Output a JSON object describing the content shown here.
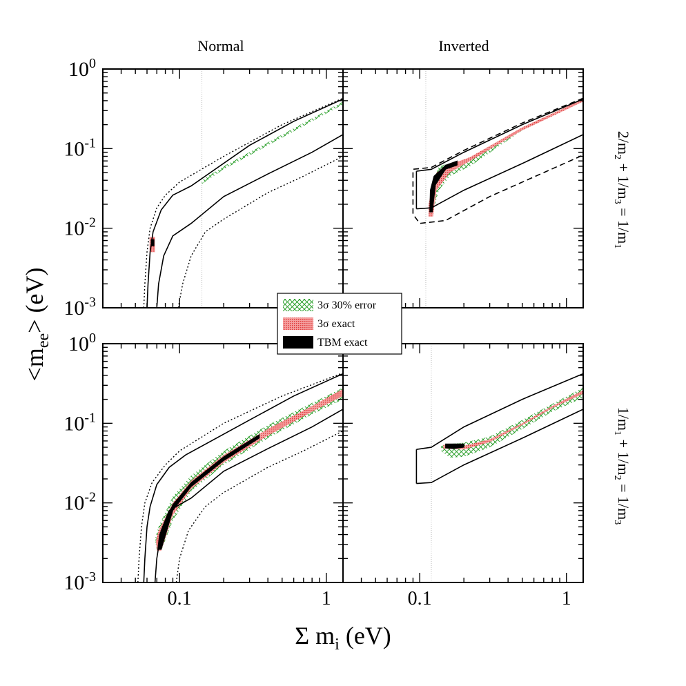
{
  "chart_data": {
    "type": "line",
    "figure": {
      "ylabel_main": "<m",
      "ylabel_sub": "ee",
      "ylabel_tail": "> (eV)",
      "xlabel_main": "Σ m",
      "xlabel_sub": "i",
      "xlabel_tail": " (eV)",
      "col_titles": [
        "Normal",
        "Inverted"
      ],
      "row_labels": [
        {
          "parts": [
            [
              "2/m",
              ""
            ],
            [
              "2",
              "sub"
            ],
            [
              " + 1/m",
              ""
            ],
            [
              "3",
              "sub"
            ],
            [
              " = 1/m",
              ""
            ],
            [
              "1",
              "sub"
            ]
          ]
        },
        {
          "parts": [
            [
              "1/m",
              ""
            ],
            [
              "1",
              "sub"
            ],
            [
              " + 1/m",
              ""
            ],
            [
              "2",
              "sub"
            ],
            [
              " = 1/m",
              ""
            ],
            [
              "3",
              "sub"
            ]
          ]
        }
      ],
      "xscale": "log",
      "yscale": "log",
      "xlim": [
        0.03,
        1.3
      ],
      "ylim": [
        0.001,
        1.0
      ],
      "xticks": [
        0.1,
        1
      ],
      "xtick_labels": [
        "0.1",
        "1"
      ],
      "yticks": [
        0.001,
        0.01,
        0.1,
        1
      ],
      "ytick_labels": [
        {
          "base": "10",
          "exp": "-3"
        },
        {
          "base": "10",
          "exp": "-2"
        },
        {
          "base": "10",
          "exp": "-1"
        },
        {
          "base": "10",
          "exp": "0"
        }
      ]
    },
    "legend": {
      "placement": "center",
      "entries": [
        {
          "label": "3σ 30% error",
          "style": "green-hatch",
          "color": "#2ca02c"
        },
        {
          "label": "3σ exact",
          "style": "red-band",
          "color": "#f08080"
        },
        {
          "label": "TBM exact",
          "style": "black-band",
          "color": "#000000"
        }
      ]
    },
    "panels": [
      {
        "id": "normal-top",
        "hierarchy": "Normal",
        "relation": "2/m2 + 1/m3 = 1/m1",
        "outer_dotted": {
          "upper": [
            [
              0.057,
              0.001
            ],
            [
              0.058,
              0.002
            ],
            [
              0.06,
              0.005
            ],
            [
              0.063,
              0.01
            ],
            [
              0.07,
              0.018
            ],
            [
              0.08,
              0.026
            ],
            [
              0.1,
              0.038
            ],
            [
              0.2,
              0.08
            ],
            [
              0.5,
              0.2
            ],
            [
              1.3,
              0.43
            ]
          ],
          "lower": [
            [
              0.098,
              0.001
            ],
            [
              0.105,
              0.002
            ],
            [
              0.12,
              0.0045
            ],
            [
              0.15,
              0.009
            ],
            [
              0.2,
              0.013
            ],
            [
              0.4,
              0.028
            ],
            [
              0.7,
              0.045
            ],
            [
              1.3,
              0.08
            ]
          ]
        },
        "band_solid": {
          "upper": [
            [
              0.06,
              0.001
            ],
            [
              0.061,
              0.002
            ],
            [
              0.063,
              0.005
            ],
            [
              0.066,
              0.009
            ],
            [
              0.075,
              0.017
            ],
            [
              0.09,
              0.026
            ],
            [
              0.12,
              0.034
            ],
            [
              0.3,
              0.11
            ],
            [
              0.6,
              0.22
            ],
            [
              1.3,
              0.42
            ]
          ],
          "lower": [
            [
              0.07,
              0.001
            ],
            [
              0.072,
              0.002
            ],
            [
              0.078,
              0.0045
            ],
            [
              0.09,
              0.008
            ],
            [
              0.12,
              0.0115
            ],
            [
              0.2,
              0.025
            ],
            [
              0.4,
              0.048
            ],
            [
              0.8,
              0.09
            ],
            [
              1.3,
              0.15
            ]
          ]
        },
        "vertical_marker_x": 0.142,
        "green_region": [
          [
            0.142,
            0.036
          ],
          [
            0.2,
            0.055
          ],
          [
            0.4,
            0.11
          ],
          [
            0.8,
            0.22
          ],
          [
            1.3,
            0.36
          ],
          [
            1.3,
            0.39
          ],
          [
            0.8,
            0.24
          ],
          [
            0.4,
            0.12
          ],
          [
            0.2,
            0.06
          ],
          [
            0.142,
            0.04
          ]
        ],
        "red_region": [
          [
            0.0625,
            0.005
          ],
          [
            0.068,
            0.005
          ],
          [
            0.068,
            0.0078
          ],
          [
            0.0625,
            0.0078
          ]
        ],
        "black_region": [
          [
            0.064,
            0.006
          ],
          [
            0.067,
            0.006
          ],
          [
            0.067,
            0.0072
          ],
          [
            0.064,
            0.0072
          ]
        ],
        "dashed_box": null
      },
      {
        "id": "inverted-top",
        "hierarchy": "Inverted",
        "relation": "2/m2 + 1/m3 = 1/m1",
        "outer_dotted": null,
        "band_solid": {
          "upper": [
            [
              0.095,
              0.052
            ],
            [
              0.12,
              0.055
            ],
            [
              0.2,
              0.09
            ],
            [
              0.5,
              0.2
            ],
            [
              1.3,
              0.42
            ]
          ],
          "lower": [
            [
              0.095,
              0.0175
            ],
            [
              0.12,
              0.018
            ],
            [
              0.2,
              0.03
            ],
            [
              0.5,
              0.065
            ],
            [
              1.3,
              0.15
            ]
          ]
        },
        "dashed_box": {
          "upper": [
            [
              0.09,
              0.055
            ],
            [
              0.12,
              0.058
            ],
            [
              0.2,
              0.095
            ],
            [
              0.5,
              0.21
            ],
            [
              1.3,
              0.43
            ]
          ],
          "lower": [
            [
              0.09,
              0.015
            ],
            [
              0.1,
              0.0115
            ],
            [
              0.15,
              0.0125
            ],
            [
              0.3,
              0.025
            ],
            [
              0.7,
              0.05
            ],
            [
              1.3,
              0.083
            ]
          ]
        },
        "vertical_marker_x": 0.11,
        "green_region": [
          [
            0.118,
            0.018
          ],
          [
            0.125,
            0.018
          ],
          [
            0.135,
            0.03
          ],
          [
            0.16,
            0.045
          ],
          [
            0.22,
            0.06
          ],
          [
            0.5,
            0.17
          ],
          [
            1.3,
            0.4
          ],
          [
            1.3,
            0.42
          ],
          [
            0.5,
            0.185
          ],
          [
            0.22,
            0.075
          ],
          [
            0.16,
            0.065
          ],
          [
            0.135,
            0.06
          ],
          [
            0.125,
            0.04
          ],
          [
            0.118,
            0.03
          ]
        ],
        "red_region": [
          [
            0.115,
            0.014
          ],
          [
            0.123,
            0.014
          ],
          [
            0.13,
            0.03
          ],
          [
            0.16,
            0.05
          ],
          [
            0.22,
            0.07
          ],
          [
            0.5,
            0.17
          ],
          [
            1.3,
            0.39
          ],
          [
            1.3,
            0.42
          ],
          [
            0.5,
            0.185
          ],
          [
            0.22,
            0.078
          ],
          [
            0.16,
            0.063
          ],
          [
            0.13,
            0.05
          ],
          [
            0.12,
            0.03
          ],
          [
            0.115,
            0.02
          ]
        ],
        "black_region": [
          [
            0.117,
            0.016
          ],
          [
            0.122,
            0.016
          ],
          [
            0.128,
            0.035
          ],
          [
            0.15,
            0.055
          ],
          [
            0.18,
            0.062
          ],
          [
            0.18,
            0.07
          ],
          [
            0.15,
            0.062
          ],
          [
            0.125,
            0.045
          ],
          [
            0.118,
            0.03
          ]
        ]
      },
      {
        "id": "normal-bottom",
        "hierarchy": "Normal",
        "relation": "1/m1 + 1/m2 = 1/m3",
        "outer_dotted": {
          "upper": [
            [
              0.052,
              0.001
            ],
            [
              0.053,
              0.002
            ],
            [
              0.055,
              0.005
            ],
            [
              0.058,
              0.01
            ],
            [
              0.065,
              0.018
            ],
            [
              0.08,
              0.03
            ],
            [
              0.1,
              0.045
            ],
            [
              0.2,
              0.1
            ],
            [
              0.5,
              0.22
            ],
            [
              1.3,
              0.43
            ]
          ],
          "lower": [
            [
              0.095,
              0.001
            ],
            [
              0.1,
              0.002
            ],
            [
              0.115,
              0.0045
            ],
            [
              0.15,
              0.009
            ],
            [
              0.2,
              0.0135
            ],
            [
              0.4,
              0.028
            ],
            [
              0.7,
              0.045
            ],
            [
              1.3,
              0.08
            ]
          ]
        },
        "band_solid": {
          "upper": [
            [
              0.057,
              0.001
            ],
            [
              0.058,
              0.002
            ],
            [
              0.06,
              0.005
            ],
            [
              0.063,
              0.009
            ],
            [
              0.07,
              0.017
            ],
            [
              0.085,
              0.028
            ],
            [
              0.11,
              0.04
            ],
            [
              0.3,
              0.11
            ],
            [
              0.6,
              0.22
            ],
            [
              1.3,
              0.42
            ]
          ],
          "lower": [
            [
              0.068,
              0.001
            ],
            [
              0.07,
              0.002
            ],
            [
              0.075,
              0.0045
            ],
            [
              0.085,
              0.008
            ],
            [
              0.12,
              0.0115
            ],
            [
              0.2,
              0.025
            ],
            [
              0.4,
              0.048
            ],
            [
              0.8,
              0.09
            ],
            [
              1.3,
              0.15
            ]
          ]
        },
        "vertical_marker_x": null,
        "green_region": [
          [
            0.07,
            0.0025
          ],
          [
            0.075,
            0.0025
          ],
          [
            0.09,
            0.006
          ],
          [
            0.12,
            0.014
          ],
          [
            0.2,
            0.03
          ],
          [
            0.4,
            0.065
          ],
          [
            0.8,
            0.13
          ],
          [
            1.3,
            0.2
          ],
          [
            1.3,
            0.28
          ],
          [
            0.8,
            0.18
          ],
          [
            0.4,
            0.095
          ],
          [
            0.2,
            0.045
          ],
          [
            0.12,
            0.022
          ],
          [
            0.09,
            0.012
          ],
          [
            0.072,
            0.005
          ],
          [
            0.068,
            0.0035
          ]
        ],
        "red_region": [
          [
            0.07,
            0.0025
          ],
          [
            0.075,
            0.0025
          ],
          [
            0.09,
            0.007
          ],
          [
            0.12,
            0.015
          ],
          [
            0.2,
            0.032
          ],
          [
            0.4,
            0.07
          ],
          [
            0.8,
            0.14
          ],
          [
            1.3,
            0.22
          ],
          [
            1.3,
            0.27
          ],
          [
            0.8,
            0.165
          ],
          [
            0.4,
            0.085
          ],
          [
            0.2,
            0.04
          ],
          [
            0.12,
            0.019
          ],
          [
            0.09,
            0.01
          ],
          [
            0.072,
            0.0045
          ],
          [
            0.069,
            0.0033
          ]
        ],
        "black_region": [
          [
            0.071,
            0.0026
          ],
          [
            0.075,
            0.0026
          ],
          [
            0.09,
            0.008
          ],
          [
            0.12,
            0.016
          ],
          [
            0.2,
            0.034
          ],
          [
            0.35,
            0.065
          ],
          [
            0.35,
            0.072
          ],
          [
            0.2,
            0.038
          ],
          [
            0.12,
            0.018
          ],
          [
            0.09,
            0.0095
          ],
          [
            0.073,
            0.004
          ]
        ],
        "dashed_box": null
      },
      {
        "id": "inverted-bottom",
        "hierarchy": "Inverted",
        "relation": "1/m1 + 1/m2 = 1/m3",
        "outer_dotted": null,
        "band_solid": {
          "upper": [
            [
              0.095,
              0.047
            ],
            [
              0.12,
              0.05
            ],
            [
              0.2,
              0.09
            ],
            [
              0.5,
              0.2
            ],
            [
              1.3,
              0.42
            ]
          ],
          "lower": [
            [
              0.095,
              0.0175
            ],
            [
              0.12,
              0.018
            ],
            [
              0.2,
              0.03
            ],
            [
              0.5,
              0.065
            ],
            [
              1.3,
              0.15
            ]
          ]
        },
        "dashed_box": null,
        "vertical_marker_x": 0.12,
        "green_region": [
          [
            0.14,
            0.045
          ],
          [
            0.16,
            0.037
          ],
          [
            0.2,
            0.038
          ],
          [
            0.3,
            0.05
          ],
          [
            0.5,
            0.085
          ],
          [
            0.8,
            0.14
          ],
          [
            1.3,
            0.21
          ],
          [
            1.3,
            0.28
          ],
          [
            0.8,
            0.175
          ],
          [
            0.5,
            0.11
          ],
          [
            0.3,
            0.068
          ],
          [
            0.2,
            0.057
          ],
          [
            0.16,
            0.055
          ],
          [
            0.14,
            0.052
          ]
        ],
        "red_region": [
          [
            0.145,
            0.048
          ],
          [
            0.2,
            0.047
          ],
          [
            0.3,
            0.058
          ],
          [
            0.5,
            0.095
          ],
          [
            0.8,
            0.155
          ],
          [
            1.3,
            0.235
          ],
          [
            1.3,
            0.26
          ],
          [
            0.8,
            0.165
          ],
          [
            0.5,
            0.1
          ],
          [
            0.3,
            0.063
          ],
          [
            0.2,
            0.052
          ],
          [
            0.145,
            0.054
          ]
        ],
        "black_region": [
          [
            0.15,
            0.049
          ],
          [
            0.17,
            0.048
          ],
          [
            0.2,
            0.05
          ],
          [
            0.2,
            0.055
          ],
          [
            0.17,
            0.055
          ],
          [
            0.15,
            0.055
          ]
        ]
      }
    ]
  }
}
